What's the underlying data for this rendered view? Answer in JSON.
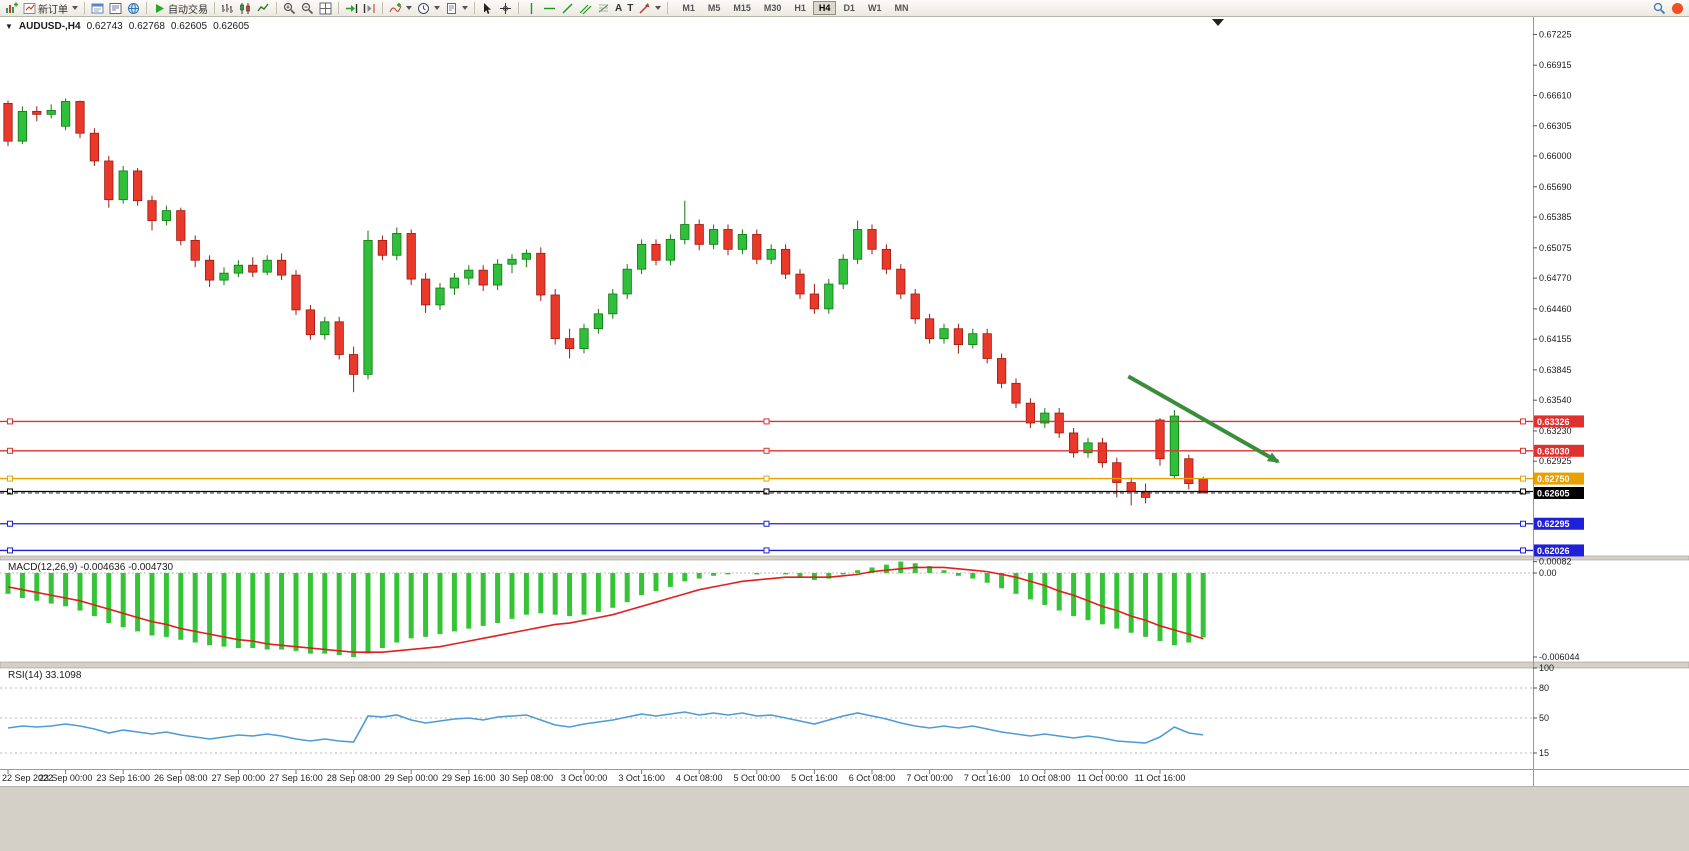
{
  "icons": {
    "collapse_arrow": "▼",
    "text_tool": "A",
    "font_tool": "T"
  },
  "toolbar": {
    "new_order_label": "新订单",
    "autotrading_label": "自动交易",
    "timeframes": [
      "M1",
      "M5",
      "M15",
      "M30",
      "H1",
      "H4",
      "D1",
      "W1",
      "MN"
    ],
    "active_timeframe": "H4"
  },
  "chart": {
    "info": {
      "symbol_period": "AUDUSD-,H4",
      "open": "0.62743",
      "high": "0.62768",
      "low": "0.62605",
      "close": "0.62605"
    }
  },
  "macd_panel": {
    "label": "MACD(12,26,9) -0.004636 -0.004730",
    "axis_ticks": [
      "0.00082",
      "0.00",
      "-0.006044"
    ]
  },
  "rsi_panel": {
    "label": "RSI(14) 33.1098",
    "axis_ticks": [
      "100",
      "80",
      "50",
      "15"
    ]
  },
  "price_axis": {
    "ticks": [
      "0.67225",
      "0.66915",
      "0.66610",
      "0.66305",
      "0.66000",
      "0.65690",
      "0.65385",
      "0.65075",
      "0.64770",
      "0.64460",
      "0.64155",
      "0.63845",
      "0.63540",
      "0.63230",
      "0.62925"
    ]
  },
  "time_axis": {
    "step_bars": 4,
    "labels": [
      "22 Sep 2022",
      "23 Sep 00:00",
      "23 Sep 16:00",
      "26 Sep 08:00",
      "27 Sep 00:00",
      "27 Sep 16:00",
      "28 Sep 08:00",
      "29 Sep 00:00",
      "29 Sep 16:00",
      "30 Sep 08:00",
      "3 Oct 00:00",
      "3 Oct 16:00",
      "4 Oct 08:00",
      "5 Oct 00:00",
      "5 Oct 16:00",
      "6 Oct 08:00",
      "7 Oct 00:00",
      "7 Oct 16:00",
      "10 Oct 08:00",
      "11 Oct 00:00",
      "11 Oct 16:00"
    ]
  },
  "chart_data": {
    "type": "candlestick",
    "symbol": "AUDUSD-",
    "period": "H4",
    "price_range": [
      0.6197,
      0.6729
    ],
    "candles": [
      [
        0.6653,
        0.6656,
        0.661,
        0.6615
      ],
      [
        0.6615,
        0.665,
        0.6612,
        0.6645
      ],
      [
        0.6645,
        0.665,
        0.6635,
        0.6642
      ],
      [
        0.6642,
        0.6652,
        0.6638,
        0.6646
      ],
      [
        0.663,
        0.6658,
        0.6626,
        0.6655
      ],
      [
        0.6655,
        0.6656,
        0.6618,
        0.6623
      ],
      [
        0.6623,
        0.6628,
        0.659,
        0.6595
      ],
      [
        0.6595,
        0.66,
        0.6548,
        0.6556
      ],
      [
        0.6556,
        0.659,
        0.6552,
        0.6585
      ],
      [
        0.6585,
        0.6588,
        0.655,
        0.6555
      ],
      [
        0.6555,
        0.656,
        0.6525,
        0.6535
      ],
      [
        0.6535,
        0.655,
        0.653,
        0.6545
      ],
      [
        0.6545,
        0.6548,
        0.651,
        0.6515
      ],
      [
        0.6515,
        0.652,
        0.6488,
        0.6495
      ],
      [
        0.6495,
        0.65,
        0.6468,
        0.6475
      ],
      [
        0.6475,
        0.6488,
        0.647,
        0.6482
      ],
      [
        0.6482,
        0.6495,
        0.6478,
        0.649
      ],
      [
        0.649,
        0.6498,
        0.6478,
        0.6483
      ],
      [
        0.6483,
        0.65,
        0.648,
        0.6495
      ],
      [
        0.6495,
        0.6502,
        0.6475,
        0.648
      ],
      [
        0.648,
        0.6485,
        0.644,
        0.6445
      ],
      [
        0.6445,
        0.645,
        0.6415,
        0.642
      ],
      [
        0.642,
        0.6438,
        0.6415,
        0.6433
      ],
      [
        0.6433,
        0.6438,
        0.6395,
        0.64
      ],
      [
        0.64,
        0.6408,
        0.6362,
        0.638
      ],
      [
        0.638,
        0.6525,
        0.6375,
        0.6515
      ],
      [
        0.6515,
        0.652,
        0.6495,
        0.65
      ],
      [
        0.65,
        0.6528,
        0.6495,
        0.6522
      ],
      [
        0.6522,
        0.6526,
        0.647,
        0.6476
      ],
      [
        0.6476,
        0.6482,
        0.6442,
        0.645
      ],
      [
        0.645,
        0.6472,
        0.6445,
        0.6467
      ],
      [
        0.6467,
        0.6482,
        0.646,
        0.6477
      ],
      [
        0.6477,
        0.649,
        0.647,
        0.6485
      ],
      [
        0.6485,
        0.649,
        0.6464,
        0.647
      ],
      [
        0.647,
        0.6496,
        0.6465,
        0.6491
      ],
      [
        0.6491,
        0.6501,
        0.6482,
        0.6496
      ],
      [
        0.6496,
        0.6506,
        0.6488,
        0.6502
      ],
      [
        0.6502,
        0.6508,
        0.6454,
        0.646
      ],
      [
        0.646,
        0.6466,
        0.641,
        0.6416
      ],
      [
        0.6416,
        0.6426,
        0.6396,
        0.6406
      ],
      [
        0.6406,
        0.6431,
        0.6401,
        0.6426
      ],
      [
        0.6426,
        0.6446,
        0.6421,
        0.6441
      ],
      [
        0.6441,
        0.6466,
        0.6436,
        0.6461
      ],
      [
        0.6461,
        0.6491,
        0.6456,
        0.6486
      ],
      [
        0.6486,
        0.6516,
        0.6481,
        0.6511
      ],
      [
        0.6511,
        0.6516,
        0.649,
        0.6495
      ],
      [
        0.6495,
        0.6521,
        0.649,
        0.6516
      ],
      [
        0.6516,
        0.6555,
        0.6511,
        0.6531
      ],
      [
        0.6531,
        0.6536,
        0.6505,
        0.6511
      ],
      [
        0.6511,
        0.6531,
        0.6506,
        0.6526
      ],
      [
        0.6526,
        0.6531,
        0.65,
        0.6506
      ],
      [
        0.6506,
        0.6526,
        0.6501,
        0.6521
      ],
      [
        0.6521,
        0.6526,
        0.6491,
        0.6496
      ],
      [
        0.6496,
        0.6511,
        0.6491,
        0.6506
      ],
      [
        0.6506,
        0.6511,
        0.6476,
        0.6481
      ],
      [
        0.6481,
        0.6486,
        0.6456,
        0.6461
      ],
      [
        0.6461,
        0.6471,
        0.6441,
        0.6446
      ],
      [
        0.6446,
        0.6476,
        0.6441,
        0.6471
      ],
      [
        0.6471,
        0.6501,
        0.6466,
        0.6496
      ],
      [
        0.6496,
        0.6535,
        0.6491,
        0.6526
      ],
      [
        0.6526,
        0.6531,
        0.6501,
        0.6506
      ],
      [
        0.6506,
        0.6511,
        0.6481,
        0.6486
      ],
      [
        0.6486,
        0.6491,
        0.6456,
        0.6461
      ],
      [
        0.6461,
        0.6466,
        0.6431,
        0.6436
      ],
      [
        0.6436,
        0.6441,
        0.6411,
        0.6416
      ],
      [
        0.6416,
        0.6431,
        0.6411,
        0.6426
      ],
      [
        0.6426,
        0.6431,
        0.6401,
        0.641
      ],
      [
        0.641,
        0.6426,
        0.6406,
        0.6421
      ],
      [
        0.6421,
        0.6426,
        0.6391,
        0.6396
      ],
      [
        0.6396,
        0.6401,
        0.6366,
        0.6371
      ],
      [
        0.6371,
        0.6376,
        0.6346,
        0.6351
      ],
      [
        0.6351,
        0.6356,
        0.6326,
        0.6331
      ],
      [
        0.6331,
        0.6346,
        0.6326,
        0.6341
      ],
      [
        0.6341,
        0.6346,
        0.6316,
        0.6321
      ],
      [
        0.6321,
        0.6326,
        0.6296,
        0.6301
      ],
      [
        0.6301,
        0.6316,
        0.6296,
        0.6311
      ],
      [
        0.6311,
        0.6316,
        0.6286,
        0.6291
      ],
      [
        0.6291,
        0.6296,
        0.6256,
        0.6271
      ],
      [
        0.6271,
        0.6276,
        0.6248,
        0.6262
      ],
      [
        0.6262,
        0.627,
        0.625,
        0.6256
      ],
      [
        0.6334,
        0.6336,
        0.6288,
        0.6295
      ],
      [
        0.6278,
        0.6344,
        0.6275,
        0.6338
      ],
      [
        0.6295,
        0.6299,
        0.6264,
        0.627
      ],
      [
        0.62743,
        0.62768,
        0.62605,
        0.62605
      ]
    ],
    "macd": {
      "params": "12,26,9",
      "value": -0.004636,
      "signal_value": -0.00473,
      "range": [
        -0.006044,
        0.00082
      ],
      "histogram": [
        -0.0015,
        -0.0018,
        -0.002,
        -0.0022,
        -0.0024,
        -0.0027,
        -0.0031,
        -0.0036,
        -0.0039,
        -0.0042,
        -0.0045,
        -0.0046,
        -0.0048,
        -0.005,
        -0.0052,
        -0.0053,
        -0.0054,
        -0.0054,
        -0.0055,
        -0.0055,
        -0.0056,
        -0.0058,
        -0.0058,
        -0.0059,
        -0.006044,
        -0.0058,
        -0.0054,
        -0.005,
        -0.0047,
        -0.0046,
        -0.0044,
        -0.0042,
        -0.004,
        -0.0038,
        -0.0036,
        -0.0033,
        -0.003,
        -0.0029,
        -0.003,
        -0.0031,
        -0.003,
        -0.0028,
        -0.0025,
        -0.0021,
        -0.0016,
        -0.0013,
        -0.001,
        -0.0006,
        -0.0004,
        -0.0002,
        -0.0001,
        0.0,
        -0.0001,
        0.0,
        -0.0001,
        -0.0003,
        -0.0005,
        -0.0004,
        -0.0001,
        0.0002,
        0.0004,
        0.0006,
        0.00082,
        0.0007,
        0.0005,
        0.0002,
        -0.0002,
        -0.0004,
        -0.0007,
        -0.0011,
        -0.0015,
        -0.0019,
        -0.0023,
        -0.0027,
        -0.0031,
        -0.0034,
        -0.0037,
        -0.004,
        -0.0043,
        -0.0046,
        -0.0049,
        -0.0052,
        -0.005,
        -0.004636
      ],
      "signal": [
        -0.001,
        -0.0012,
        -0.0014,
        -0.0016,
        -0.0018,
        -0.002,
        -0.0023,
        -0.0026,
        -0.0029,
        -0.0032,
        -0.0035,
        -0.0037,
        -0.004,
        -0.0042,
        -0.0044,
        -0.0046,
        -0.0048,
        -0.0049,
        -0.0051,
        -0.0052,
        -0.0053,
        -0.0054,
        -0.0055,
        -0.0056,
        -0.0057,
        -0.0057,
        -0.0057,
        -0.0056,
        -0.0055,
        -0.0054,
        -0.0053,
        -0.0051,
        -0.0049,
        -0.0047,
        -0.0045,
        -0.0043,
        -0.0041,
        -0.0039,
        -0.0037,
        -0.0036,
        -0.0034,
        -0.0032,
        -0.003,
        -0.0027,
        -0.0024,
        -0.0021,
        -0.0018,
        -0.0015,
        -0.0012,
        -0.001,
        -0.0008,
        -0.0006,
        -0.0005,
        -0.0004,
        -0.0003,
        -0.0003,
        -0.0003,
        -0.0003,
        -0.0002,
        -0.0001,
        0.0001,
        0.0002,
        0.0003,
        0.0004,
        0.0004,
        0.0004,
        0.0003,
        0.0002,
        0.0001,
        -0.0001,
        -0.0003,
        -0.0006,
        -0.0009,
        -0.0013,
        -0.0016,
        -0.002,
        -0.0024,
        -0.0027,
        -0.0031,
        -0.0034,
        -0.0038,
        -0.0041,
        -0.0044,
        -0.00473
      ]
    },
    "rsi": {
      "params": "14",
      "value": 33.1098,
      "levels": [
        15,
        50,
        80
      ],
      "values": [
        40,
        42,
        41,
        42,
        44,
        42,
        39,
        35,
        38,
        36,
        34,
        36,
        33,
        31,
        29,
        31,
        33,
        32,
        34,
        32,
        29,
        27,
        29,
        27,
        26,
        52,
        51,
        53,
        48,
        45,
        47,
        49,
        50,
        48,
        51,
        52,
        53,
        48,
        43,
        41,
        44,
        46,
        48,
        51,
        54,
        52,
        54,
        56,
        53,
        55,
        53,
        55,
        52,
        53,
        50,
        47,
        44,
        48,
        52,
        55,
        52,
        49,
        45,
        42,
        40,
        42,
        40,
        42,
        39,
        36,
        34,
        32,
        34,
        32,
        30,
        32,
        30,
        27,
        26,
        25,
        31,
        41,
        35,
        33.1098
      ]
    },
    "hlines": [
      {
        "price": 0.63326,
        "color": "#e03030",
        "badge": "0.63326"
      },
      {
        "price": 0.6303,
        "color": "#e03030",
        "badge": "0.63030"
      },
      {
        "price": 0.6275,
        "color": "#e8a200",
        "badge": "0.62750"
      },
      {
        "price": 0.6262,
        "color": "#000000",
        "badge": null
      },
      {
        "price": 0.62295,
        "color": "#2020d8",
        "badge": "0.62295"
      },
      {
        "price": 0.62026,
        "color": "#2020d8",
        "badge": "0.62026"
      }
    ],
    "bid": {
      "price": 0.62605,
      "badge": "0.62605",
      "color": "#000000"
    },
    "arrow": {
      "from_bar": 77.8,
      "from_price": 0.6378,
      "to_bar": 88.2,
      "to_price": 0.6292,
      "color": "#3a8e3a"
    }
  }
}
